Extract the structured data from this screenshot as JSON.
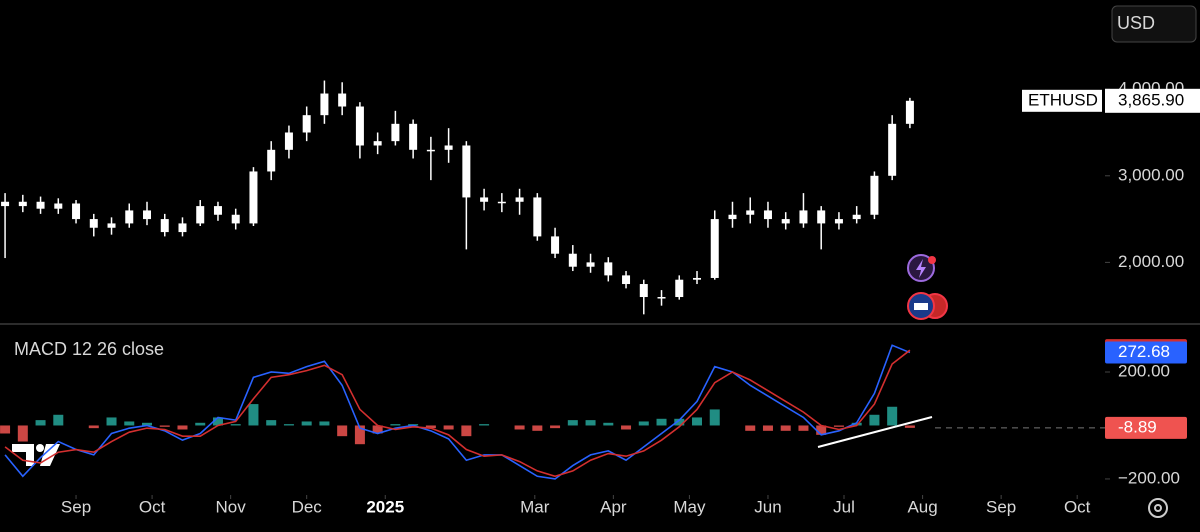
{
  "ui": {
    "currency": "USD"
  },
  "chart_data": [
    {
      "type": "candlestick",
      "symbol": "ETHUSD",
      "last_label": "3,865.90",
      "color": "#ffffff",
      "xlim": [
        0,
        434
      ],
      "ylim": [
        1300,
        5030
      ],
      "yticks": [
        {
          "value": 2000,
          "label": "2,000.00"
        },
        {
          "value": 3000,
          "label": "3,000.00"
        },
        {
          "value": 4000,
          "label": "4,000.00"
        }
      ],
      "x": [
        2,
        9,
        16,
        23,
        30,
        37,
        44,
        51,
        58,
        65,
        72,
        79,
        86,
        93,
        100,
        107,
        114,
        121,
        128,
        135,
        142,
        149,
        156,
        163,
        170,
        177,
        184,
        191,
        198,
        205,
        212,
        219,
        226,
        233,
        240,
        247,
        254,
        261,
        268,
        275,
        282,
        289,
        296,
        303,
        310,
        317,
        324,
        331,
        338,
        345,
        352,
        359
      ],
      "open": [
        2700,
        2650,
        2700,
        2620,
        2680,
        2500,
        2400,
        2450,
        2600,
        2500,
        2350,
        2450,
        2650,
        2550,
        2450,
        3050,
        3300,
        3500,
        3700,
        3950,
        3800,
        3350,
        3400,
        3600,
        3300,
        3300,
        3350,
        2750,
        2700,
        2700,
        2750,
        2300,
        2100,
        1950,
        2000,
        1850,
        1750,
        1600,
        1600,
        1800,
        1820,
        2500,
        2550,
        2600,
        2500,
        2450,
        2600,
        2450,
        2500,
        2550,
        3000,
        3600
      ],
      "high": [
        2800,
        2780,
        2760,
        2740,
        2720,
        2560,
        2520,
        2680,
        2700,
        2560,
        2520,
        2720,
        2700,
        2620,
        3100,
        3400,
        3580,
        3800,
        4100,
        4080,
        3850,
        3500,
        3750,
        3650,
        3450,
        3550,
        3400,
        2850,
        2800,
        2850,
        2800,
        2400,
        2200,
        2100,
        2060,
        1900,
        1800,
        1680,
        1850,
        1900,
        2600,
        2700,
        2750,
        2700,
        2580,
        2800,
        2650,
        2580,
        2650,
        3050,
        3700,
        3900
      ],
      "low": [
        2050,
        2580,
        2560,
        2560,
        2450,
        2300,
        2320,
        2400,
        2430,
        2300,
        2300,
        2420,
        2480,
        2380,
        2420,
        2950,
        3200,
        3400,
        3600,
        3700,
        3200,
        3250,
        3350,
        3200,
        2950,
        3150,
        2150,
        2600,
        2580,
        2550,
        2250,
        2050,
        1900,
        1880,
        1780,
        1700,
        1400,
        1500,
        1570,
        1750,
        1800,
        2400,
        2450,
        2400,
        2380,
        2400,
        2150,
        2380,
        2450,
        2500,
        2950,
        3550
      ],
      "close": [
        2650,
        2700,
        2620,
        2680,
        2500,
        2400,
        2450,
        2600,
        2500,
        2350,
        2450,
        2650,
        2550,
        2450,
        3050,
        3300,
        3500,
        3700,
        3950,
        3800,
        3350,
        3400,
        3600,
        3300,
        3300,
        3350,
        2750,
        2700,
        2700,
        2750,
        2300,
        2100,
        1950,
        2000,
        1850,
        1750,
        1600,
        1600,
        1800,
        1820,
        2500,
        2550,
        2600,
        2500,
        2450,
        2600,
        2450,
        2500,
        2550,
        3000,
        3600,
        3865.9
      ]
    },
    {
      "type": "macd",
      "title": "MACD 12 26 close",
      "xlim": [
        0,
        434
      ],
      "ylim": [
        -260,
        372
      ],
      "yticks": [
        {
          "value": 200,
          "label": "200.00"
        },
        {
          "value": -200,
          "label": "−200.00"
        }
      ],
      "xticks": [
        {
          "value": 30,
          "label": "Sep"
        },
        {
          "value": 60,
          "label": "Oct"
        },
        {
          "value": 91,
          "label": "Nov"
        },
        {
          "value": 121,
          "label": "Dec"
        },
        {
          "value": 152,
          "label": "2025"
        },
        {
          "value": 211,
          "label": "Mar"
        },
        {
          "value": 242,
          "label": "Apr"
        },
        {
          "value": 272,
          "label": "May"
        },
        {
          "value": 303,
          "label": "Jun"
        },
        {
          "value": 333,
          "label": "Jul"
        },
        {
          "value": 364,
          "label": "Aug"
        },
        {
          "value": 395,
          "label": "Sep"
        },
        {
          "value": 425,
          "label": "Oct"
        }
      ],
      "x": [
        2,
        9,
        16,
        23,
        30,
        37,
        44,
        51,
        58,
        65,
        72,
        79,
        86,
        93,
        100,
        107,
        114,
        121,
        128,
        135,
        142,
        149,
        156,
        163,
        170,
        177,
        184,
        191,
        198,
        205,
        212,
        219,
        226,
        233,
        240,
        247,
        254,
        261,
        268,
        275,
        282,
        289,
        296,
        303,
        310,
        317,
        324,
        331,
        338,
        345,
        352,
        359
      ],
      "series": [
        {
          "type": "bar",
          "up_color": "#26a69a",
          "down_color": "#ef5350",
          "values": [
            -30,
            -60,
            20,
            40,
            0,
            -10,
            30,
            15,
            10,
            -5,
            -15,
            10,
            30,
            5,
            80,
            20,
            5,
            15,
            15,
            -40,
            -70,
            -30,
            5,
            5,
            -10,
            -15,
            -40,
            5,
            0,
            -15,
            -20,
            -10,
            20,
            20,
            10,
            -15,
            15,
            25,
            25,
            30,
            60,
            0,
            -20,
            -20,
            -20,
            -20,
            -35,
            -5,
            10,
            40,
            70,
            -8.89
          ]
        },
        {
          "type": "line",
          "color": "#2962ff",
          "values": [
            -110,
            -190,
            -120,
            -60,
            -90,
            -110,
            -30,
            -10,
            0,
            -20,
            -55,
            -30,
            30,
            20,
            180,
            200,
            195,
            220,
            240,
            150,
            -10,
            -30,
            -10,
            0,
            -20,
            -50,
            -130,
            -110,
            -110,
            -150,
            -190,
            -200,
            -150,
            -110,
            -95,
            -130,
            -80,
            -30,
            20,
            90,
            220,
            200,
            150,
            110,
            70,
            30,
            -35,
            -20,
            10,
            120,
            300,
            272.68
          ]
        },
        {
          "type": "line",
          "color": "#d32f2f",
          "values": [
            -80,
            -130,
            -140,
            -100,
            -90,
            -100,
            -60,
            -25,
            -10,
            -15,
            -40,
            -40,
            0,
            15,
            100,
            180,
            190,
            205,
            225,
            190,
            60,
            0,
            -15,
            -5,
            -10,
            -35,
            -90,
            -115,
            -110,
            -135,
            -170,
            -190,
            -170,
            -130,
            -105,
            -115,
            -95,
            -55,
            -5,
            60,
            160,
            200,
            170,
            130,
            90,
            50,
            0,
            -15,
            0,
            80,
            230,
            281.57
          ]
        }
      ]
    }
  ]
}
